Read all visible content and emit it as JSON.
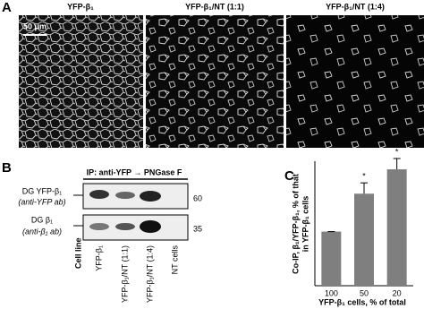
{
  "panel_a": {
    "label": "A",
    "images": [
      {
        "title": "YFP-β₁"
      },
      {
        "title": "YFP-β₁/NT (1:1)"
      },
      {
        "title": "YFP-β₁/NT (1:4)"
      }
    ],
    "scale_bar": "50 μm"
  },
  "panel_b": {
    "label": "B",
    "header": "IP: anti-YFP → PNGase F",
    "rows": [
      {
        "name": "DG YFP-β₁",
        "antibody": "(anti-YFP ab)",
        "marker": "60"
      },
      {
        "name": "DG β₁",
        "antibody": "(anti-β₁ ab)",
        "marker": "35"
      }
    ],
    "lane_title": "Cell line",
    "lanes": [
      "YFP-β₁",
      "YFP-β₁/NT (1:1)",
      "YFP-β₁/NT (1:4)",
      "NT cells"
    ]
  },
  "panel_c": {
    "label": "C"
  },
  "chart_data": {
    "type": "bar",
    "categories": [
      "100",
      "50",
      "20"
    ],
    "values": [
      100,
      170,
      215
    ],
    "errors": [
      0,
      20,
      20
    ],
    "significance": [
      null,
      "*",
      "*"
    ],
    "color": "#7f7f7f",
    "ylim": [
      0,
      230
    ],
    "y_label": [
      "Co-IP, β₁/YFP-β₁, % of that",
      "in YFP-β₁ cells"
    ],
    "x_label": "YFP-β₁ cells, % of total"
  }
}
